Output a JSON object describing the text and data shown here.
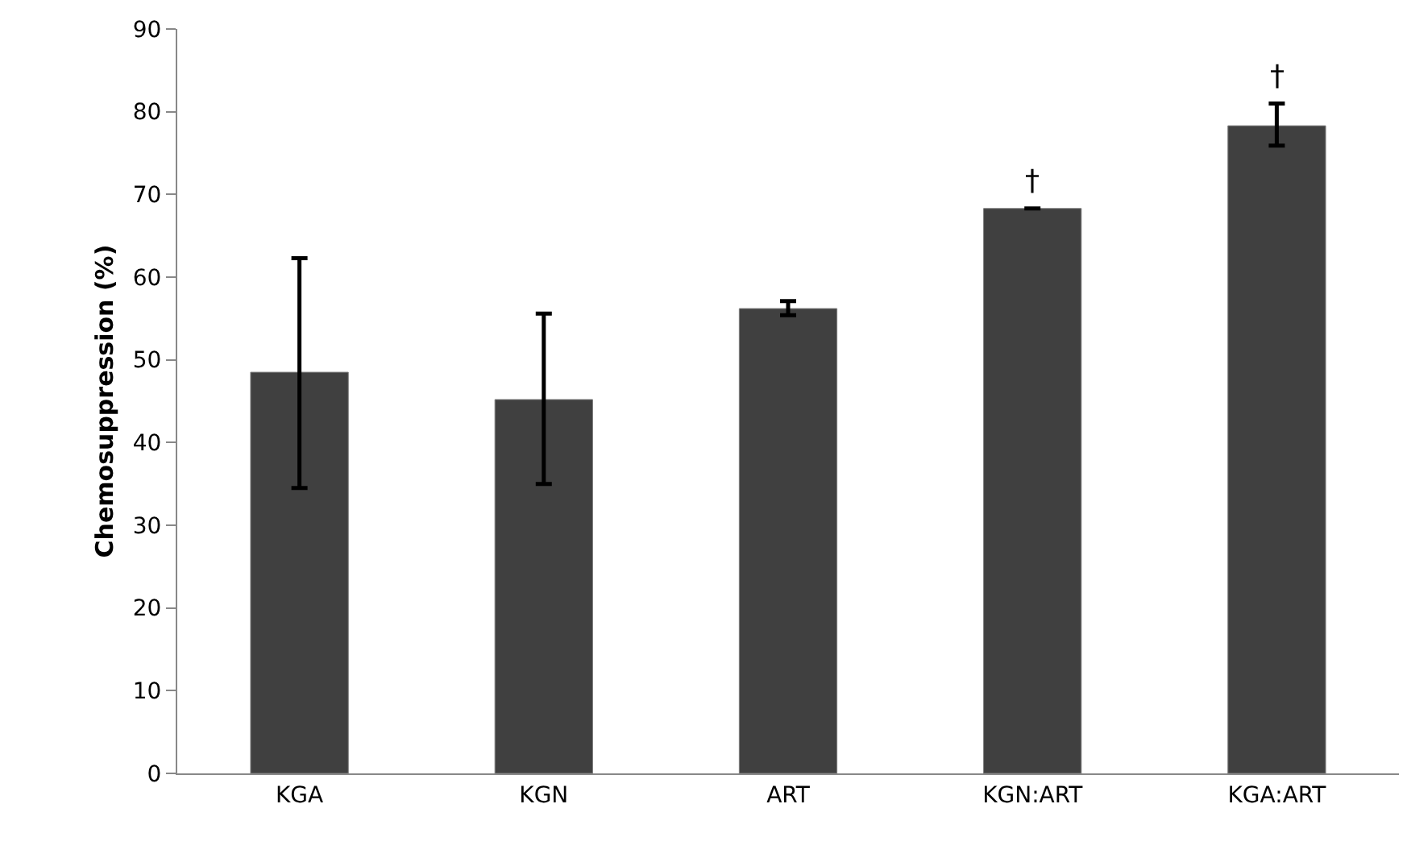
{
  "chart_data": {
    "type": "bar",
    "ylabel": "Chemosuppression (%)",
    "categories": [
      "KGA",
      "KGN",
      "ART",
      "KGN:ART",
      "KGA:ART"
    ],
    "values": [
      48.5,
      45.2,
      56.2,
      68.3,
      78.3
    ],
    "errors": [
      [
        34.5,
        62.3
      ],
      [
        35.0,
        55.6
      ],
      [
        55.4,
        57.1
      ],
      null,
      [
        75.9,
        81.0
      ]
    ],
    "color": "#404040",
    "ylim": [
      0,
      90
    ],
    "yticks": [
      0,
      10,
      20,
      30,
      40,
      50,
      60,
      70,
      80,
      90
    ],
    "grid": false,
    "annotations": [
      {
        "text": "†",
        "x": "KGN:ART",
        "y": 68.3
      },
      {
        "text": "†",
        "x": "KGA:ART",
        "y": 78.3
      }
    ]
  }
}
